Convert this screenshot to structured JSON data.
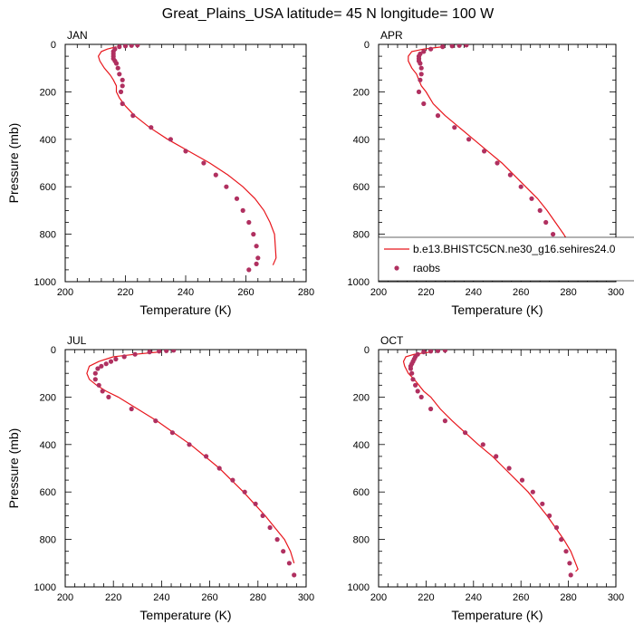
{
  "figure": {
    "title": "Great_Plains_USA  latitude= 45 N longitude= 100 W",
    "legend": {
      "line_label": "b.e13.BHISTC5CN.ne30_g16.sehires24.0",
      "marker_label": "raobs",
      "placement": "lower-right of APR panel",
      "line_color": "#e8161c",
      "marker_color": "#b03060"
    }
  },
  "chart_data": [
    {
      "type": "line",
      "title": "JAN",
      "xlabel": "Temperature (K)",
      "ylabel": "Pressure (mb)",
      "xlim": [
        200,
        280
      ],
      "ylim": [
        1000,
        0
      ],
      "xticks": [
        200,
        220,
        240,
        260,
        280
      ],
      "yticks": [
        0,
        200,
        400,
        600,
        800,
        1000
      ],
      "series": [
        {
          "name": "b.e13.BHISTC5CN.ne30_g16.sehires24.0",
          "style": "line",
          "x": [
            217,
            214,
            212,
            211,
            211.5,
            213,
            215,
            216,
            217,
            217,
            218,
            220,
            223,
            228,
            234,
            241,
            248,
            254,
            259,
            263,
            266,
            268,
            269.5,
            270,
            269
          ],
          "y": [
            10,
            20,
            30,
            50,
            70,
            100,
            130,
            150,
            175,
            200,
            225,
            260,
            300,
            350,
            400,
            450,
            500,
            550,
            600,
            650,
            700,
            750,
            800,
            900,
            930
          ]
        },
        {
          "name": "raobs",
          "style": "markers",
          "x": [
            224,
            222,
            220,
            218,
            216.5,
            216,
            216,
            216,
            216,
            216.5,
            217,
            217.5,
            218,
            219,
            219,
            218.5,
            219,
            222.5,
            228.5,
            235,
            240,
            246,
            250,
            253.5,
            257,
            259,
            261,
            262.5,
            263.5,
            264,
            263.5,
            261
          ],
          "y": [
            3,
            5,
            7,
            10,
            20,
            30,
            40,
            50,
            60,
            70,
            80,
            100,
            125,
            150,
            175,
            200,
            250,
            300,
            350,
            400,
            450,
            500,
            550,
            600,
            650,
            700,
            750,
            800,
            850,
            900,
            925,
            950
          ]
        }
      ]
    },
    {
      "type": "line",
      "title": "APR",
      "xlabel": "Temperature (K)",
      "ylabel": "",
      "xlim": [
        200,
        300
      ],
      "ylim": [
        1000,
        0
      ],
      "xticks": [
        200,
        220,
        240,
        260,
        280,
        300
      ],
      "yticks": [
        0,
        200,
        400,
        600,
        800,
        1000
      ],
      "series": [
        {
          "name": "b.e13.BHISTC5CN.ne30_g16.sehires24.0",
          "style": "line",
          "x": [
            227,
            219,
            214,
            212.5,
            212.5,
            214,
            216,
            217,
            218,
            220,
            223,
            228,
            234,
            240,
            246,
            252,
            257,
            262,
            267,
            271,
            274.5,
            278,
            281,
            282.5
          ],
          "y": [
            10,
            20,
            30,
            50,
            70,
            100,
            125,
            150,
            175,
            200,
            250,
            300,
            350,
            400,
            450,
            500,
            550,
            600,
            650,
            700,
            750,
            800,
            850,
            900
          ]
        },
        {
          "name": "raobs",
          "style": "markers",
          "x": [
            237,
            234,
            231,
            227,
            222,
            219,
            217.5,
            217,
            217,
            217,
            217.5,
            218,
            218,
            217.5,
            217,
            219,
            225,
            232,
            238,
            244.5,
            250,
            255.5,
            260,
            264.5,
            268,
            270.5,
            273.5,
            276.5,
            278,
            279,
            280
          ],
          "y": [
            3,
            5,
            7,
            10,
            20,
            30,
            40,
            50,
            60,
            70,
            80,
            100,
            125,
            150,
            200,
            250,
            300,
            350,
            400,
            450,
            500,
            550,
            600,
            650,
            700,
            750,
            800,
            850,
            875,
            900,
            950
          ]
        }
      ]
    },
    {
      "type": "line",
      "title": "JUL",
      "xlabel": "Temperature (K)",
      "ylabel": "Pressure (mb)",
      "xlim": [
        200,
        300
      ],
      "ylim": [
        1000,
        0
      ],
      "xticks": [
        200,
        220,
        240,
        260,
        280,
        300
      ],
      "yticks": [
        0,
        200,
        400,
        600,
        800,
        1000
      ],
      "series": [
        {
          "name": "b.e13.BHISTC5CN.ne30_g16.sehires24.0",
          "style": "line",
          "x": [
            239,
            229,
            220,
            214,
            210,
            209,
            210,
            213,
            217,
            222,
            230,
            238,
            245,
            252,
            258,
            264,
            269,
            274,
            278.5,
            283,
            287,
            291,
            293.5,
            295
          ],
          "y": [
            10,
            20,
            30,
            50,
            70,
            100,
            125,
            150,
            175,
            200,
            250,
            300,
            350,
            400,
            450,
            500,
            550,
            600,
            650,
            700,
            750,
            800,
            850,
            900
          ]
        },
        {
          "name": "raobs",
          "style": "markers",
          "x": [
            245,
            242,
            239,
            235,
            229,
            224.5,
            221,
            219,
            217,
            215,
            213.5,
            212.5,
            212.5,
            214,
            215.5,
            218,
            227.5,
            237.5,
            244.5,
            251.5,
            258.5,
            264,
            269.5,
            274.5,
            279,
            282,
            285,
            288,
            290.5,
            293,
            295
          ],
          "y": [
            3,
            5,
            7,
            10,
            20,
            30,
            40,
            50,
            60,
            70,
            80,
            100,
            125,
            150,
            175,
            200,
            250,
            300,
            350,
            400,
            450,
            500,
            550,
            600,
            650,
            700,
            750,
            800,
            850,
            900,
            950
          ]
        }
      ]
    },
    {
      "type": "line",
      "title": "OCT",
      "xlabel": "Temperature (K)",
      "ylabel": "",
      "xlim": [
        200,
        300
      ],
      "ylim": [
        1000,
        0
      ],
      "xticks": [
        200,
        220,
        240,
        260,
        280,
        300
      ],
      "yticks": [
        0,
        200,
        400,
        600,
        800,
        1000
      ],
      "series": [
        {
          "name": "b.e13.BHISTC5CN.ne30_g16.sehires24.0",
          "style": "line",
          "x": [
            222,
            215,
            211.5,
            210.5,
            211,
            212.5,
            215,
            217,
            219,
            222,
            226,
            231,
            236.5,
            242,
            248,
            253,
            258,
            263,
            267,
            271,
            274.5,
            278,
            281,
            283,
            284,
            283
          ],
          "y": [
            10,
            20,
            30,
            50,
            70,
            100,
            125,
            150,
            175,
            200,
            250,
            300,
            350,
            400,
            450,
            500,
            550,
            600,
            650,
            700,
            750,
            800,
            850,
            900,
            925,
            935
          ]
        },
        {
          "name": "raobs",
          "style": "markers",
          "x": [
            228,
            225,
            222,
            219,
            216.5,
            215.5,
            215,
            214.5,
            214,
            213.5,
            213.5,
            214,
            214.5,
            215.5,
            216.5,
            218,
            222,
            228,
            236.5,
            244,
            249.5,
            255,
            260.5,
            265,
            269,
            272,
            275,
            277,
            279,
            280.5,
            281
          ],
          "y": [
            3,
            5,
            7,
            10,
            20,
            30,
            40,
            50,
            60,
            70,
            80,
            100,
            125,
            150,
            175,
            200,
            250,
            300,
            350,
            400,
            450,
            500,
            550,
            600,
            650,
            700,
            750,
            800,
            850,
            900,
            950
          ]
        }
      ]
    }
  ]
}
